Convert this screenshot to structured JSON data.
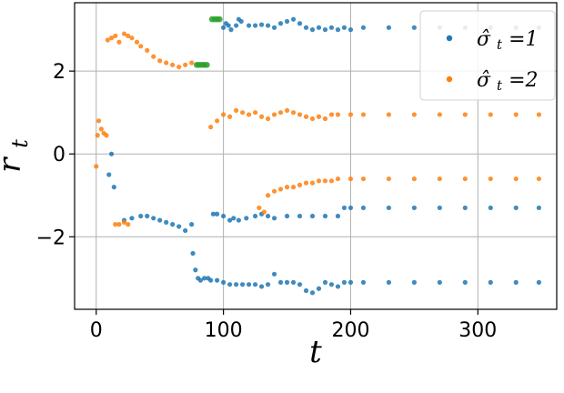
{
  "chart_data": {
    "type": "scatter",
    "title": "",
    "xlabel": "t",
    "ylabel": "r_t",
    "xlim": [
      -17,
      362
    ],
    "ylim": [
      -3.75,
      3.65
    ],
    "x_ticks": [
      0,
      100,
      200,
      300
    ],
    "y_ticks": [
      -2,
      0,
      2
    ],
    "x_tick_labels": [
      "0",
      "100",
      "200",
      "300"
    ],
    "y_tick_labels": [
      "−2",
      "0",
      "2"
    ],
    "grid": true,
    "legend_placement": "top-right",
    "colors": {
      "series_1": "#1f77b4",
      "series_2": "#ff7f0e",
      "series_3": "#2ca02c",
      "grid": "#b0b0b0",
      "axis": "#000000"
    },
    "series": [
      {
        "name": "σ̂_t=1",
        "legend_label": "σ̂",
        "legend_subscript": "t",
        "legend_value": "=1",
        "color": "#1f77b4",
        "points": [
          [
            10,
            -0.5
          ],
          [
            12,
            0.0
          ],
          [
            14,
            -0.8
          ],
          [
            76,
            -2.4
          ],
          [
            78,
            -2.8
          ],
          [
            80,
            -3.0
          ],
          [
            82,
            -3.05
          ],
          [
            85,
            -3.0
          ],
          [
            88,
            -3.0
          ],
          [
            90,
            -3.05
          ],
          [
            100,
            3.05
          ],
          [
            102,
            3.15
          ],
          [
            104,
            3.1
          ],
          [
            106,
            3.0
          ],
          [
            110,
            3.1
          ],
          [
            112,
            3.25
          ],
          [
            114,
            3.2
          ],
          [
            120,
            3.1
          ],
          [
            125,
            3.1
          ],
          [
            130,
            3.12
          ],
          [
            135,
            3.1
          ],
          [
            140,
            3.05
          ],
          [
            145,
            3.15
          ],
          [
            150,
            3.2
          ],
          [
            155,
            3.25
          ],
          [
            160,
            3.15
          ],
          [
            165,
            3.05
          ],
          [
            170,
            3.0
          ],
          [
            175,
            3.05
          ],
          [
            180,
            3.0
          ],
          [
            185,
            3.05
          ],
          [
            190,
            3.0
          ],
          [
            195,
            3.05
          ],
          [
            200,
            3.0
          ],
          [
            210,
            3.05
          ],
          [
            230,
            3.05
          ],
          [
            250,
            3.05
          ],
          [
            270,
            3.05
          ],
          [
            290,
            3.05
          ],
          [
            310,
            3.05
          ],
          [
            330,
            3.05
          ],
          [
            348,
            3.05
          ],
          [
            22,
            -1.6
          ],
          [
            28,
            -1.55
          ],
          [
            35,
            -1.5
          ],
          [
            40,
            -1.5
          ],
          [
            45,
            -1.55
          ],
          [
            50,
            -1.6
          ],
          [
            55,
            -1.65
          ],
          [
            60,
            -1.7
          ],
          [
            65,
            -1.75
          ],
          [
            70,
            -1.85
          ],
          [
            75,
            -1.7
          ],
          [
            92,
            -1.45
          ],
          [
            95,
            -1.45
          ],
          [
            100,
            -1.5
          ],
          [
            105,
            -1.6
          ],
          [
            108,
            -1.55
          ],
          [
            112,
            -1.6
          ],
          [
            118,
            -1.55
          ],
          [
            125,
            -1.5
          ],
          [
            130,
            -1.45
          ],
          [
            135,
            -1.5
          ],
          [
            140,
            -1.55
          ],
          [
            150,
            -1.5
          ],
          [
            160,
            -1.5
          ],
          [
            170,
            -1.5
          ],
          [
            180,
            -1.5
          ],
          [
            190,
            -1.5
          ],
          [
            195,
            -1.3
          ],
          [
            200,
            -1.3
          ],
          [
            210,
            -1.3
          ],
          [
            230,
            -1.3
          ],
          [
            250,
            -1.3
          ],
          [
            270,
            -1.3
          ],
          [
            290,
            -1.3
          ],
          [
            310,
            -1.3
          ],
          [
            330,
            -1.3
          ],
          [
            348,
            -1.3
          ],
          [
            95,
            -3.05
          ],
          [
            100,
            -3.1
          ],
          [
            105,
            -3.15
          ],
          [
            110,
            -3.15
          ],
          [
            115,
            -3.15
          ],
          [
            120,
            -3.15
          ],
          [
            125,
            -3.15
          ],
          [
            130,
            -3.2
          ],
          [
            135,
            -3.15
          ],
          [
            140,
            -2.9
          ],
          [
            145,
            -3.1
          ],
          [
            150,
            -3.1
          ],
          [
            155,
            -3.1
          ],
          [
            160,
            -3.15
          ],
          [
            165,
            -3.3
          ],
          [
            170,
            -3.35
          ],
          [
            175,
            -3.25
          ],
          [
            180,
            -3.1
          ],
          [
            185,
            -3.15
          ],
          [
            190,
            -3.2
          ],
          [
            195,
            -3.1
          ],
          [
            200,
            -3.1
          ],
          [
            210,
            -3.1
          ],
          [
            230,
            -3.1
          ],
          [
            250,
            -3.1
          ],
          [
            270,
            -3.1
          ],
          [
            290,
            -3.1
          ],
          [
            310,
            -3.1
          ],
          [
            330,
            -3.1
          ],
          [
            348,
            -3.1
          ]
        ]
      },
      {
        "name": "σ̂_t=2",
        "legend_label": "σ̂",
        "legend_subscript": "t",
        "legend_value": "=2",
        "color": "#ff7f0e",
        "points": [
          [
            0,
            -0.3
          ],
          [
            1,
            0.45
          ],
          [
            2,
            0.8
          ],
          [
            4,
            0.6
          ],
          [
            6,
            0.5
          ],
          [
            8,
            0.45
          ],
          [
            9,
            2.75
          ],
          [
            12,
            2.8
          ],
          [
            15,
            2.85
          ],
          [
            18,
            2.7
          ],
          [
            22,
            2.9
          ],
          [
            25,
            2.85
          ],
          [
            28,
            2.8
          ],
          [
            32,
            2.7
          ],
          [
            35,
            2.6
          ],
          [
            40,
            2.5
          ],
          [
            45,
            2.35
          ],
          [
            50,
            2.25
          ],
          [
            55,
            2.2
          ],
          [
            60,
            2.15
          ],
          [
            65,
            2.1
          ],
          [
            70,
            2.15
          ],
          [
            75,
            2.2
          ],
          [
            80,
            2.15
          ],
          [
            85,
            2.15
          ],
          [
            15,
            -1.7
          ],
          [
            18,
            -1.7
          ],
          [
            22,
            -1.65
          ],
          [
            25,
            -1.7
          ],
          [
            90,
            0.65
          ],
          [
            95,
            0.8
          ],
          [
            100,
            0.95
          ],
          [
            105,
            0.9
          ],
          [
            110,
            1.05
          ],
          [
            115,
            1.0
          ],
          [
            120,
            0.95
          ],
          [
            125,
            1.0
          ],
          [
            130,
            0.9
          ],
          [
            135,
            0.85
          ],
          [
            140,
            0.95
          ],
          [
            145,
            1.0
          ],
          [
            150,
            1.05
          ],
          [
            155,
            1.0
          ],
          [
            160,
            0.95
          ],
          [
            165,
            0.9
          ],
          [
            170,
            0.85
          ],
          [
            175,
            0.9
          ],
          [
            180,
            0.85
          ],
          [
            185,
            0.95
          ],
          [
            190,
            0.95
          ],
          [
            200,
            0.95
          ],
          [
            210,
            0.95
          ],
          [
            230,
            0.95
          ],
          [
            250,
            0.95
          ],
          [
            270,
            0.95
          ],
          [
            290,
            0.95
          ],
          [
            310,
            0.95
          ],
          [
            330,
            0.95
          ],
          [
            348,
            0.95
          ],
          [
            128,
            -1.3
          ],
          [
            132,
            -1.4
          ],
          [
            135,
            -1.0
          ],
          [
            140,
            -0.9
          ],
          [
            145,
            -0.85
          ],
          [
            150,
            -0.8
          ],
          [
            155,
            -0.8
          ],
          [
            160,
            -0.75
          ],
          [
            165,
            -0.7
          ],
          [
            170,
            -0.7
          ],
          [
            175,
            -0.65
          ],
          [
            180,
            -0.65
          ],
          [
            185,
            -0.65
          ],
          [
            190,
            -0.6
          ],
          [
            200,
            -0.6
          ],
          [
            210,
            -0.6
          ],
          [
            230,
            -0.6
          ],
          [
            250,
            -0.6
          ],
          [
            270,
            -0.6
          ],
          [
            290,
            -0.6
          ],
          [
            310,
            -0.6
          ],
          [
            330,
            -0.6
          ],
          [
            348,
            -0.6
          ]
        ]
      },
      {
        "name": "",
        "color": "#2ca02c",
        "points": [
          [
            79,
            2.15
          ],
          [
            81,
            2.15
          ],
          [
            83,
            2.15
          ],
          [
            85,
            2.15
          ],
          [
            87,
            2.15
          ],
          [
            91,
            3.25
          ],
          [
            93,
            3.25
          ],
          [
            95,
            3.25
          ],
          [
            97,
            3.25
          ]
        ]
      }
    ]
  }
}
